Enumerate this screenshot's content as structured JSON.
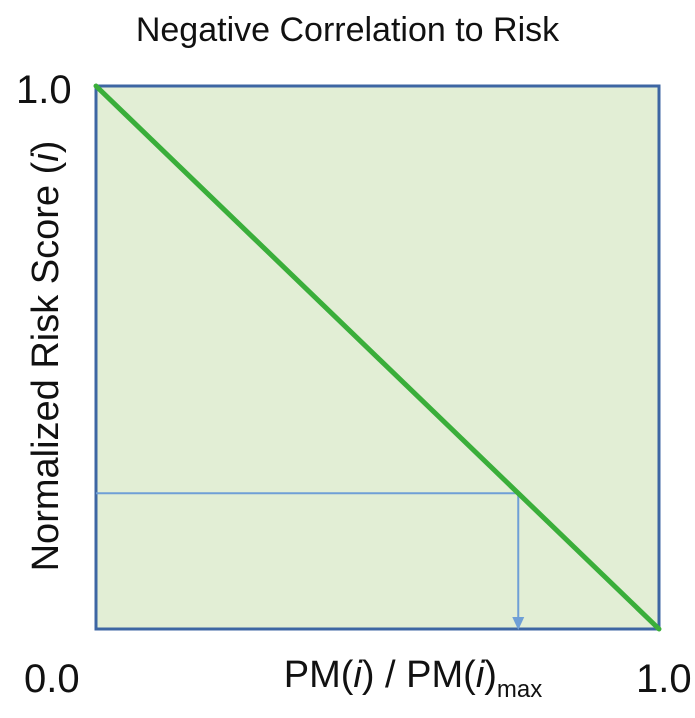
{
  "chart_data": {
    "type": "line",
    "title": "Negative Correlation to Risk",
    "ylabel": {
      "prefix": "Normalized Risk Score (",
      "var": "i",
      "suffix": ")"
    },
    "xlabel": {
      "p1": "PM(",
      "v1": "i",
      "p2": ") / PM(",
      "v2": "i",
      "p3": ")",
      "sub": "max"
    },
    "xlim": [
      0.0,
      1.0
    ],
    "ylim": [
      0.0,
      1.0
    ],
    "tick_labels": {
      "x_min": "0.0",
      "x_max": "1.0",
      "y_max": "1.0"
    },
    "series": [
      {
        "x": [
          0.0,
          1.0
        ],
        "y": [
          1.0,
          0.0
        ],
        "color": "#3aae3a"
      }
    ],
    "annotation": {
      "x": 0.75,
      "y": 0.25,
      "color": "#6f9fd6"
    },
    "background_color": "#e2eed5",
    "border_color": "#3d66a3",
    "grid": false
  }
}
